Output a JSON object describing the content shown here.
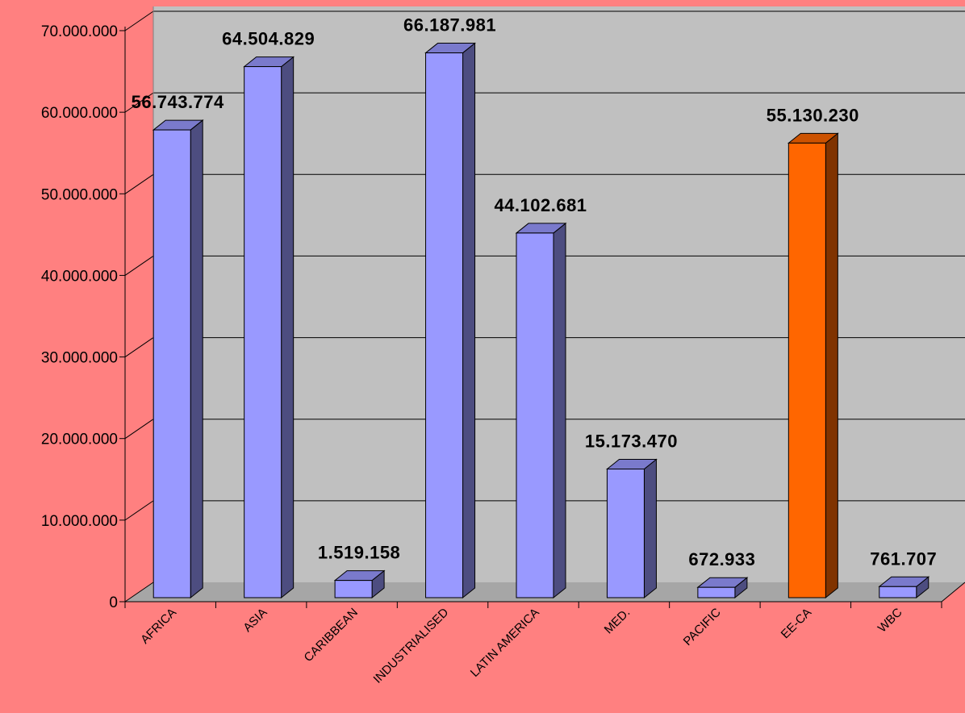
{
  "chart_data": {
    "type": "bar",
    "three_d": true,
    "categories": [
      "AFRICA",
      "ASIA",
      "CARIBBEAN",
      "INDUSTRIALISED",
      "LATIN AMERICA",
      "MED.",
      "PACIFIC",
      "EE-CA",
      "WBC"
    ],
    "values": [
      56743774,
      64504829,
      1519158,
      66187981,
      44102681,
      15173470,
      672933,
      55130230,
      761707
    ],
    "data_labels": [
      "56.743.774",
      "64.504.829",
      "1.519.158",
      "66.187.981",
      "44.102.681",
      "15.173.470",
      "672.933",
      "55.130.230",
      "761.707"
    ],
    "highlight_index": 7,
    "ylim": [
      0,
      70000000
    ],
    "yticks": [
      0,
      10000000,
      20000000,
      30000000,
      40000000,
      50000000,
      60000000,
      70000000
    ],
    "ytick_labels": [
      "0",
      "10.000.000",
      "20.000.000",
      "30.000.000",
      "40.000.000",
      "50.000.000",
      "60.000.000",
      "70.000.000"
    ],
    "grid": true,
    "legend": "none"
  },
  "colors": {
    "background": "#FF8080",
    "plot_wall": "#C0C0C0",
    "floor": "#A6A6A6",
    "bar_front": "#9999FF",
    "bar_side": "#4D4D80",
    "bar_top": "#7A7ACC",
    "highlight_front": "#FF6600",
    "highlight_side": "#803300",
    "highlight_top": "#CC5200",
    "gridline": "#000000"
  }
}
